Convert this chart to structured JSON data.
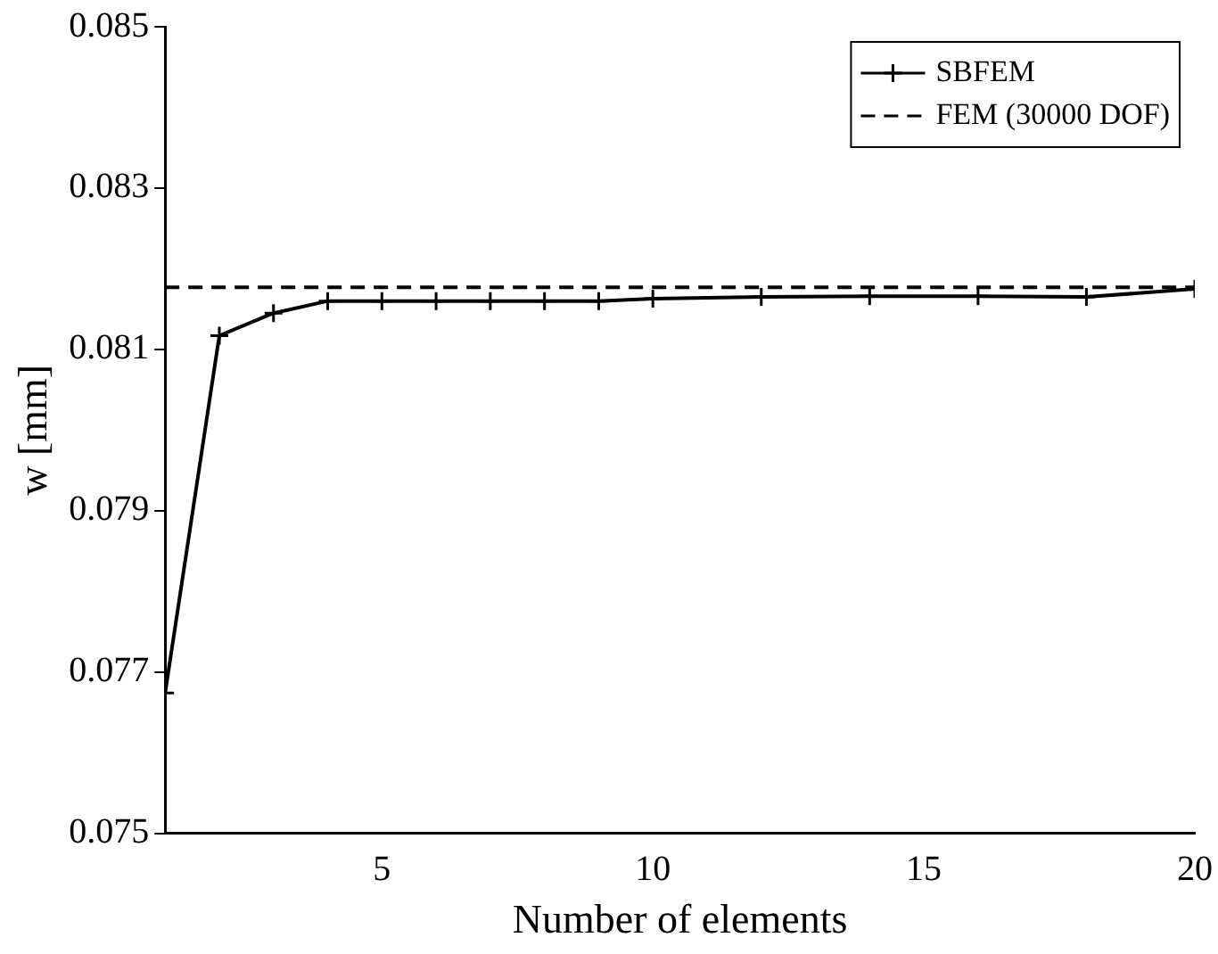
{
  "chart_data": {
    "type": "line",
    "xlabel": "Number of elements",
    "ylabel": "w [mm]",
    "xlim": [
      1,
      20
    ],
    "xticks": [
      5,
      10,
      15,
      20
    ],
    "ylim": [
      0.075,
      0.085
    ],
    "yticks": [
      0.075,
      0.077,
      0.079,
      0.081,
      0.083,
      0.085
    ],
    "grid": false,
    "legend": "top right",
    "series": [
      {
        "name": "SBFEM",
        "color": "#000000",
        "marker": "cross",
        "line_style": "solid",
        "x": [
          1,
          2,
          3,
          4,
          5,
          6,
          7,
          8,
          9,
          10,
          12,
          14,
          16,
          18,
          20
        ],
        "values": [
          0.07674,
          0.08117,
          0.08145,
          0.0816,
          0.0816,
          0.0816,
          0.0816,
          0.0816,
          0.0816,
          0.08163,
          0.08165,
          0.08166,
          0.08166,
          0.08165,
          0.08175
        ]
      },
      {
        "name": "FEM (30000 DOF)",
        "color": "#000000",
        "marker": "none",
        "line_style": "dashed",
        "x": [
          1,
          20
        ],
        "values": [
          0.08177,
          0.08177
        ]
      }
    ]
  }
}
